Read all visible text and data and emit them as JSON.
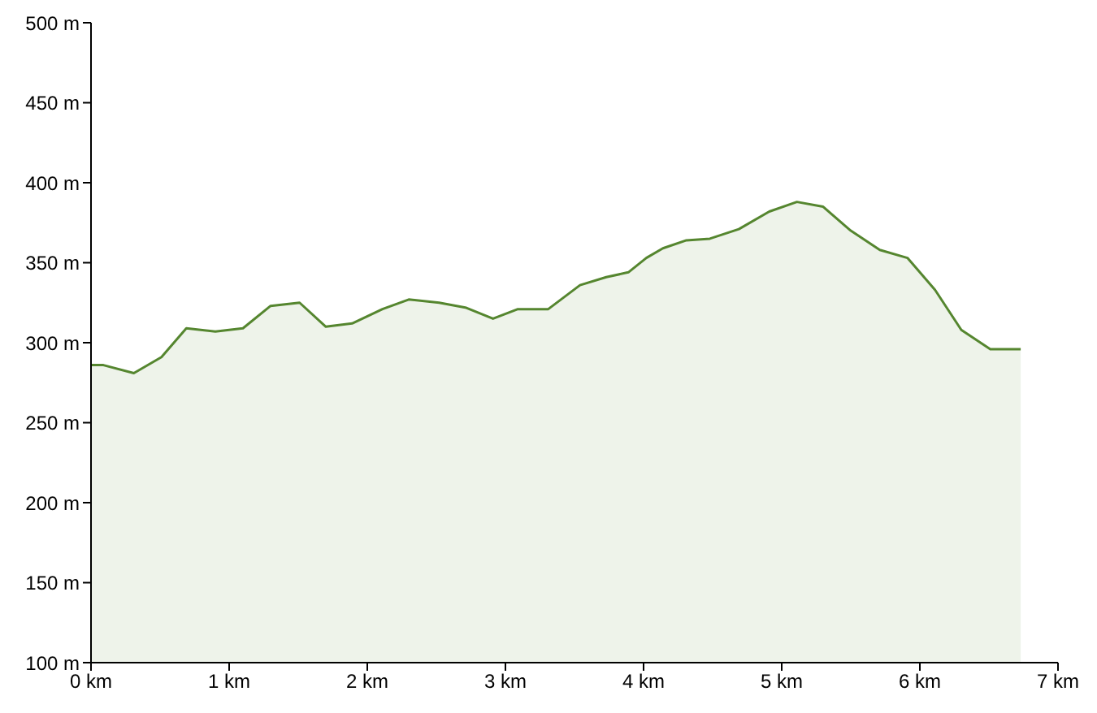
{
  "chart_data": {
    "type": "area",
    "color": "#55862f",
    "x": [
      0,
      0.09,
      0.31,
      0.51,
      0.69,
      0.9,
      1.1,
      1.3,
      1.51,
      1.7,
      1.89,
      2.11,
      2.3,
      2.52,
      2.71,
      2.91,
      3.09,
      3.31,
      3.54,
      3.73,
      3.89,
      4.02,
      4.14,
      4.31,
      4.48,
      4.69,
      4.91,
      5.11,
      5.3,
      5.5,
      5.71,
      5.91,
      6.11,
      6.3,
      6.51,
      6.73
    ],
    "values": [
      286,
      286,
      281,
      291,
      309,
      307,
      309,
      323,
      325,
      310,
      312,
      321,
      327,
      325,
      322,
      315,
      321,
      321,
      336,
      341,
      344,
      353,
      359,
      364,
      365,
      371,
      382,
      388,
      385,
      370,
      358,
      353,
      333,
      308,
      296,
      296
    ],
    "xlim": [
      0,
      7
    ],
    "xticks": [
      {
        "value": 0,
        "label": "0 km"
      },
      {
        "value": 1,
        "label": "1 km"
      },
      {
        "value": 2,
        "label": "2 km"
      },
      {
        "value": 3,
        "label": "3 km"
      },
      {
        "value": 4,
        "label": "4 km"
      },
      {
        "value": 5,
        "label": "5 km"
      },
      {
        "value": 6,
        "label": "6 km"
      },
      {
        "value": 7,
        "label": "7 km"
      }
    ],
    "ylim": [
      100,
      500
    ],
    "yticks": [
      {
        "value": 100,
        "label": "100 m"
      },
      {
        "value": 150,
        "label": "150 m"
      },
      {
        "value": 200,
        "label": "200 m"
      },
      {
        "value": 250,
        "label": "250 m"
      },
      {
        "value": 300,
        "label": "300 m"
      },
      {
        "value": 350,
        "label": "350 m"
      },
      {
        "value": 400,
        "label": "400 m"
      },
      {
        "value": 450,
        "label": "450 m"
      },
      {
        "value": 500,
        "label": "500 m"
      }
    ]
  }
}
